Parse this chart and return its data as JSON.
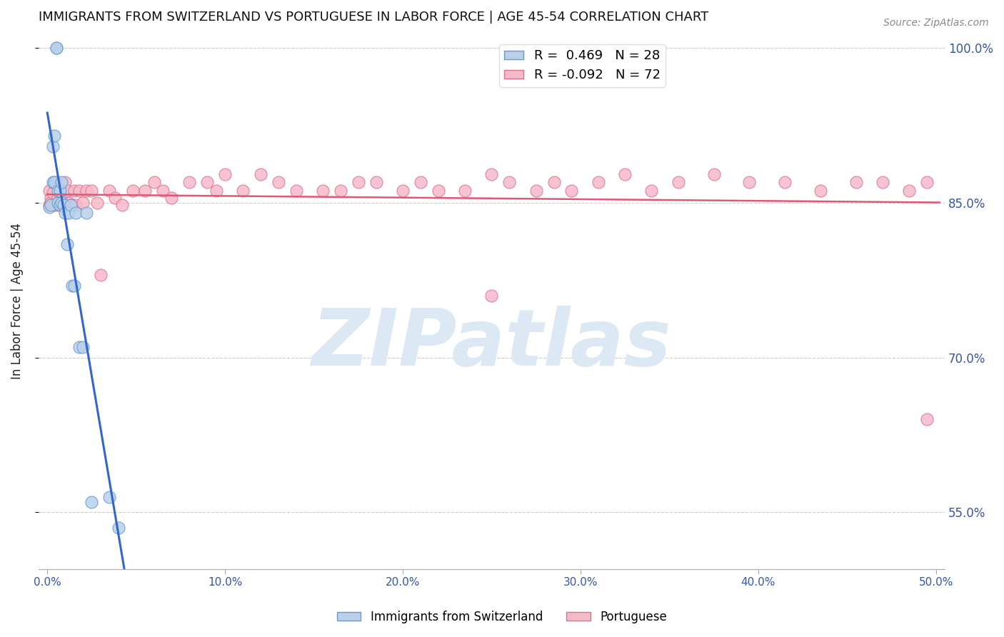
{
  "title": "IMMIGRANTS FROM SWITZERLAND VS PORTUGUESE IN LABOR FORCE | AGE 45-54 CORRELATION CHART",
  "source": "Source: ZipAtlas.com",
  "ylabel": "In Labor Force | Age 45-54",
  "xlim": [
    -0.005,
    0.505
  ],
  "ylim": [
    0.495,
    1.015
  ],
  "xticks": [
    0.0,
    0.1,
    0.2,
    0.3,
    0.4,
    0.5
  ],
  "xtick_labels": [
    "0.0%",
    "10.0%",
    "20.0%",
    "30.0%",
    "40.0%",
    "50.0%"
  ],
  "ytick_labels_right": [
    "55.0%",
    "70.0%",
    "85.0%",
    "100.0%"
  ],
  "ytick_vals": [
    0.55,
    0.7,
    0.85,
    1.0
  ],
  "r_swiss": 0.469,
  "n_swiss": 28,
  "r_port": -0.092,
  "n_port": 72,
  "swiss_color": "#b8d0ea",
  "swiss_edge": "#6699cc",
  "port_color": "#f5bac8",
  "port_edge": "#e07090",
  "trendline_swiss_color": "#3366cc",
  "trendline_port_color": "#e05878",
  "watermark_color": "#dde8f5",
  "swiss_x": [
    0.001,
    0.002,
    0.003,
    0.003,
    0.004,
    0.004,
    0.005,
    0.005,
    0.006,
    0.006,
    0.007,
    0.007,
    0.008,
    0.008,
    0.009,
    0.01,
    0.011,
    0.012,
    0.013,
    0.014,
    0.015,
    0.016,
    0.018,
    0.02,
    0.022,
    0.025,
    0.035,
    0.04
  ],
  "swiss_y": [
    0.846,
    0.848,
    0.905,
    0.87,
    0.87,
    0.915,
    1.0,
    1.0,
    0.85,
    0.862,
    0.862,
    0.848,
    0.85,
    0.87,
    0.848,
    0.84,
    0.81,
    0.84,
    0.848,
    0.77,
    0.77,
    0.84,
    0.71,
    0.71,
    0.84,
    0.56,
    0.565,
    0.535
  ],
  "port_x": [
    0.001,
    0.001,
    0.002,
    0.002,
    0.003,
    0.003,
    0.004,
    0.005,
    0.005,
    0.006,
    0.006,
    0.007,
    0.007,
    0.008,
    0.008,
    0.009,
    0.01,
    0.011,
    0.012,
    0.013,
    0.014,
    0.015,
    0.016,
    0.018,
    0.02,
    0.022,
    0.025,
    0.028,
    0.03,
    0.035,
    0.038,
    0.042,
    0.048,
    0.055,
    0.06,
    0.065,
    0.07,
    0.08,
    0.09,
    0.095,
    0.1,
    0.11,
    0.12,
    0.13,
    0.14,
    0.155,
    0.165,
    0.175,
    0.185,
    0.2,
    0.21,
    0.22,
    0.235,
    0.25,
    0.26,
    0.275,
    0.285,
    0.295,
    0.31,
    0.325,
    0.34,
    0.355,
    0.375,
    0.395,
    0.415,
    0.435,
    0.455,
    0.47,
    0.485,
    0.495,
    0.25,
    0.495
  ],
  "port_y": [
    0.848,
    0.862,
    0.855,
    0.85,
    0.86,
    0.848,
    0.848,
    0.87,
    0.85,
    0.855,
    0.848,
    0.862,
    0.848,
    0.855,
    0.848,
    0.848,
    0.87,
    0.862,
    0.85,
    0.848,
    0.848,
    0.862,
    0.848,
    0.862,
    0.85,
    0.862,
    0.862,
    0.85,
    0.78,
    0.862,
    0.855,
    0.848,
    0.862,
    0.862,
    0.87,
    0.862,
    0.855,
    0.87,
    0.87,
    0.862,
    0.878,
    0.862,
    0.878,
    0.87,
    0.862,
    0.862,
    0.862,
    0.87,
    0.87,
    0.862,
    0.87,
    0.862,
    0.862,
    0.878,
    0.87,
    0.862,
    0.87,
    0.862,
    0.87,
    0.878,
    0.862,
    0.87,
    0.878,
    0.87,
    0.87,
    0.862,
    0.87,
    0.87,
    0.862,
    0.87,
    0.76,
    0.64
  ]
}
